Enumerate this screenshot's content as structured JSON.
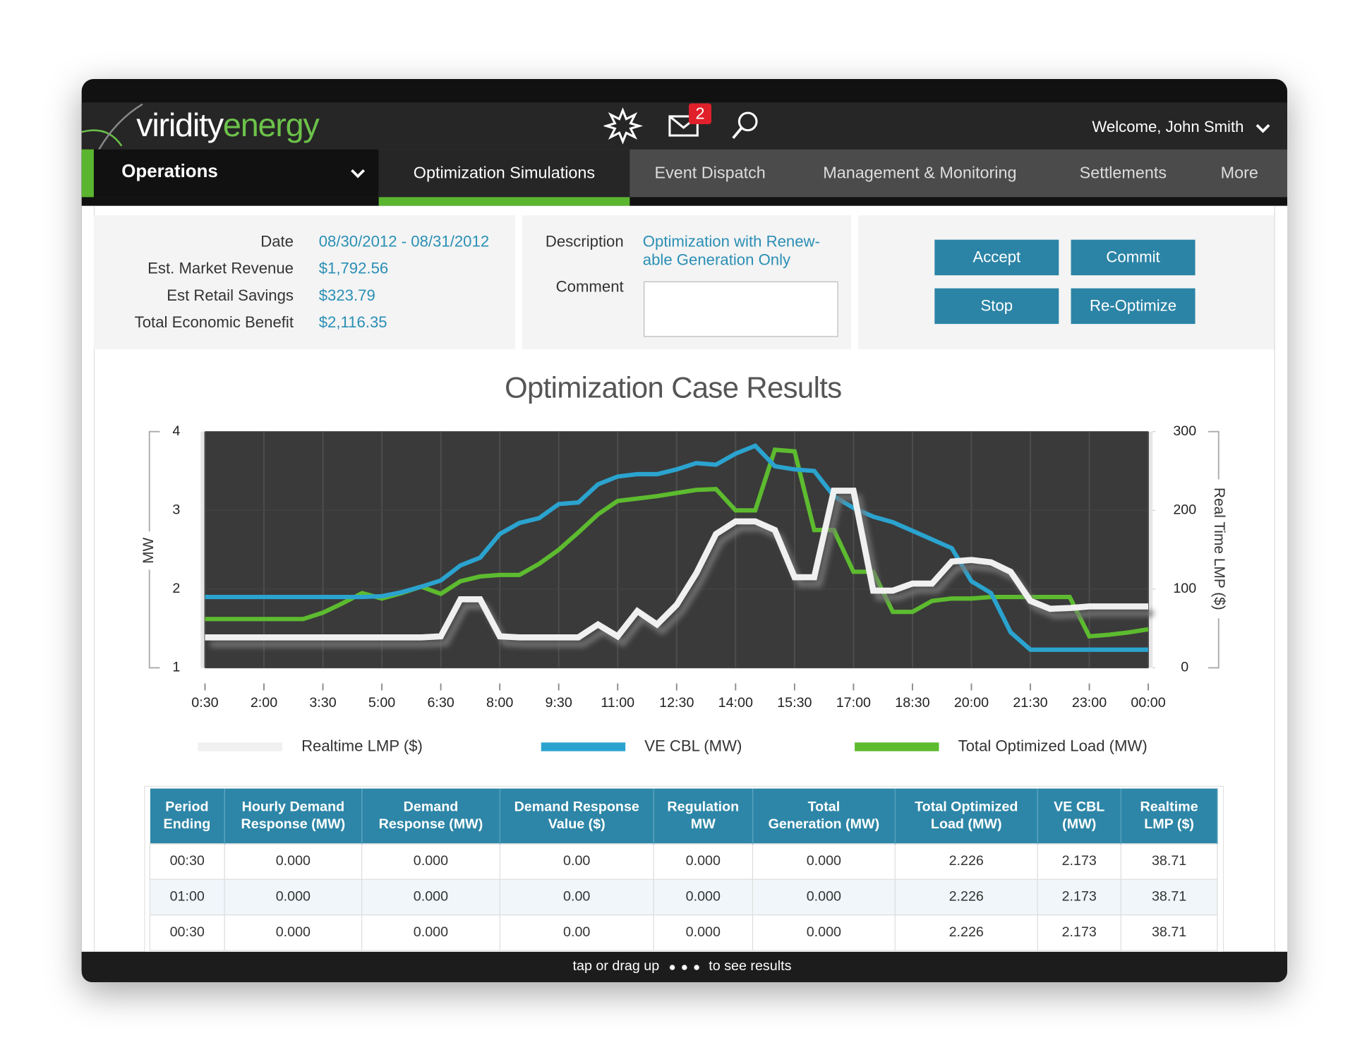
{
  "header": {
    "logo_part1": "viridity",
    "logo_part2": "energy",
    "badge": "2",
    "welcome": "Welcome, John Smith"
  },
  "nav": {
    "section": "Operations",
    "tabs": [
      "Optimization Simulations",
      "Event Dispatch",
      "Management & Monitoring",
      "Settlements",
      "More"
    ],
    "active_tab": 0
  },
  "summary": {
    "fields": [
      {
        "label": "Date",
        "value": "08/30/2012 - 08/31/2012"
      },
      {
        "label": "Est. Market Revenue",
        "value": "$1,792.56"
      },
      {
        "label": "Est Retail Savings",
        "value": "$323.79"
      },
      {
        "label": "Total Economic Benefit",
        "value": "$2,116.35"
      }
    ],
    "description_label": "Description",
    "description": [
      "Optimization with Renew-",
      "able Generation Only"
    ],
    "comment_label": "Comment"
  },
  "buttons": [
    "Accept",
    "Commit",
    "Stop",
    "Re-Optimize"
  ],
  "chart_data": {
    "type": "line",
    "title": "Optimization Case Results",
    "x": [
      "0:30",
      null,
      null,
      "2:00",
      null,
      null,
      "3:30",
      null,
      null,
      "5:00",
      null,
      null,
      "6:30",
      null,
      null,
      "8:00",
      null,
      null,
      "9:30",
      null,
      null,
      "11:00",
      null,
      null,
      "12:30",
      null,
      null,
      "14:00",
      null,
      null,
      "15:30",
      null,
      null,
      "17:00",
      null,
      null,
      "18:30",
      null,
      null,
      "20:00",
      null,
      null,
      "21:30",
      null,
      null,
      "23:00",
      null,
      null,
      "00:00"
    ],
    "y_label": "MW",
    "y2_label": "Real Time LMP ($)",
    "ylim": [
      1,
      4
    ],
    "yticks": [
      1,
      2,
      3,
      4
    ],
    "y2lim": [
      0,
      300
    ],
    "y2ticks": [
      0,
      100,
      200,
      300
    ],
    "grid": true,
    "series": [
      {
        "name": "Realtime LMP ($)",
        "color": "#f0f0f0",
        "axis": "y2",
        "values": [
          38.71,
          38.71,
          38.71,
          38.71,
          38.71,
          38.71,
          38.71,
          38.71,
          38.71,
          38.71,
          38.71,
          38.71,
          40,
          87,
          87,
          40,
          38.71,
          38.71,
          38.71,
          38.71,
          55,
          40,
          72,
          55,
          80,
          120,
          170,
          186,
          186,
          175,
          115,
          115,
          225,
          225,
          98,
          98,
          107,
          107,
          135,
          137,
          134,
          122,
          85,
          75,
          76,
          78,
          78,
          78,
          78
        ]
      },
      {
        "name": "VE CBL (MW)",
        "color": "#2ba3cf",
        "values": [
          1.9,
          1.9,
          1.9,
          1.9,
          1.9,
          1.9,
          1.9,
          1.9,
          1.9,
          1.91,
          1.96,
          2.03,
          2.11,
          2.3,
          2.4,
          2.7,
          2.84,
          2.9,
          3.08,
          3.1,
          3.33,
          3.43,
          3.46,
          3.46,
          3.52,
          3.6,
          3.58,
          3.72,
          3.82,
          3.56,
          3.52,
          3.5,
          3.18,
          3.03,
          2.92,
          2.85,
          2.74,
          2.63,
          2.52,
          2.1,
          1.95,
          1.45,
          1.23,
          1.23,
          1.23,
          1.23,
          1.23,
          1.23,
          1.23
        ]
      },
      {
        "name": "Total Optimized Load (MW)",
        "color": "#5dbb2f",
        "values": [
          1.62,
          1.62,
          1.62,
          1.62,
          1.62,
          1.62,
          1.7,
          1.82,
          1.95,
          1.88,
          1.95,
          2.03,
          1.94,
          2.1,
          2.16,
          2.18,
          2.18,
          2.32,
          2.5,
          2.72,
          2.95,
          3.12,
          3.15,
          3.18,
          3.22,
          3.26,
          3.27,
          3.0,
          3.0,
          3.77,
          3.75,
          2.75,
          2.75,
          2.22,
          2.22,
          1.71,
          1.71,
          1.85,
          1.88,
          1.88,
          1.9,
          1.9,
          1.9,
          1.9,
          1.9,
          1.4,
          1.42,
          1.45,
          1.49
        ]
      }
    ]
  },
  "table": {
    "columns": [
      [
        "Period",
        "Ending"
      ],
      [
        "Hourly Demand",
        "Response (MW)"
      ],
      [
        "Demand",
        "Response (MW)"
      ],
      [
        "Demand Response",
        "Value ($)"
      ],
      [
        "Regulation",
        "MW"
      ],
      [
        "Total",
        "Generation (MW)"
      ],
      [
        "Total Optimized",
        "Load (MW)"
      ],
      [
        "VE CBL",
        "(MW)"
      ],
      [
        "Realtime",
        "LMP ($)"
      ]
    ],
    "rows": [
      [
        "00:30",
        "0.000",
        "0.000",
        "0.00",
        "0.000",
        "0.000",
        "2.226",
        "2.173",
        "38.71"
      ],
      [
        "01:00",
        "0.000",
        "0.000",
        "0.00",
        "0.000",
        "0.000",
        "2.226",
        "2.173",
        "38.71"
      ],
      [
        "00:30",
        "0.000",
        "0.000",
        "0.00",
        "0.000",
        "0.000",
        "2.226",
        "2.173",
        "38.71"
      ]
    ]
  },
  "footer": {
    "text_before": "tap or drag up",
    "text_after": "to see results"
  }
}
